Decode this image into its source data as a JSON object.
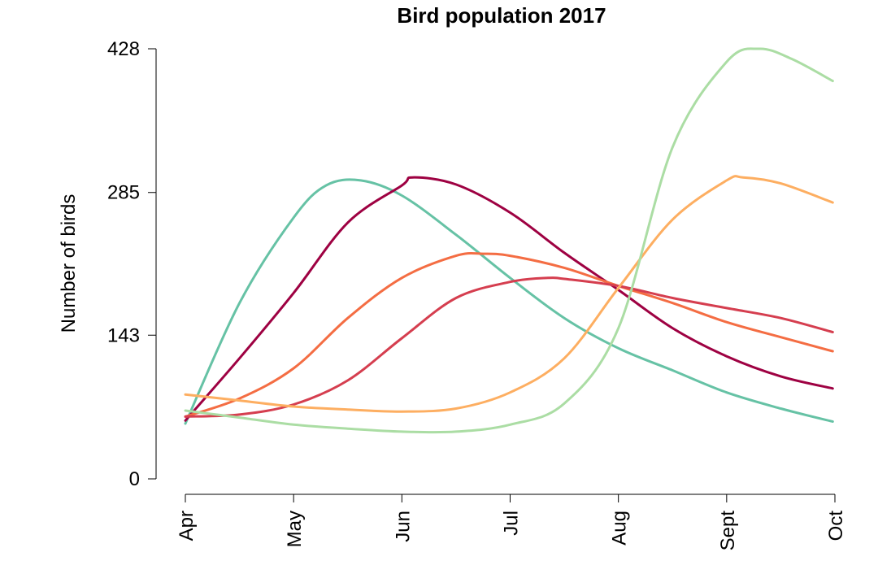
{
  "chart_data": {
    "type": "line",
    "title": "Bird population 2017",
    "ylabel": "Number of birds",
    "xlabel": "",
    "x_categories": [
      "Apr",
      "May",
      "Jun",
      "Jul",
      "Aug",
      "Sept",
      "Oct"
    ],
    "y_ticks": [
      0,
      143,
      285,
      428
    ],
    "y_tick_labels": [
      "0",
      "143",
      "285",
      "428"
    ],
    "ylim": [
      0,
      428
    ],
    "xlim": [
      0,
      6
    ],
    "grid": false,
    "legend": "none",
    "series": [
      {
        "color": "#66c2a5",
        "points": [
          [
            0,
            55
          ],
          [
            0.5,
            175
          ],
          [
            1,
            260
          ],
          [
            1.3,
            292
          ],
          [
            1.62,
            297
          ],
          [
            2,
            282
          ],
          [
            2.5,
            243
          ],
          [
            3,
            200
          ],
          [
            3.5,
            160
          ],
          [
            4,
            130
          ],
          [
            4.5,
            108
          ],
          [
            5,
            86
          ],
          [
            5.5,
            70
          ],
          [
            5.98,
            57
          ]
        ]
      },
      {
        "color": "#9e0142",
        "points": [
          [
            0,
            58
          ],
          [
            0.5,
            120
          ],
          [
            1,
            185
          ],
          [
            1.5,
            255
          ],
          [
            2,
            292
          ],
          [
            2.1,
            300
          ],
          [
            2.5,
            293
          ],
          [
            3,
            265
          ],
          [
            3.5,
            225
          ],
          [
            4,
            188
          ],
          [
            4.5,
            150
          ],
          [
            5,
            122
          ],
          [
            5.5,
            102
          ],
          [
            5.98,
            90
          ]
        ]
      },
      {
        "color": "#f46d43",
        "points": [
          [
            0,
            62
          ],
          [
            0.5,
            80
          ],
          [
            1,
            110
          ],
          [
            1.5,
            160
          ],
          [
            2,
            200
          ],
          [
            2.5,
            222
          ],
          [
            2.75,
            224
          ],
          [
            3,
            222
          ],
          [
            3.5,
            210
          ],
          [
            4,
            192
          ],
          [
            4.5,
            175
          ],
          [
            5,
            156
          ],
          [
            5.5,
            141
          ],
          [
            5.98,
            127
          ]
        ]
      },
      {
        "color": "#d53e4f",
        "points": [
          [
            0,
            62
          ],
          [
            0.5,
            64
          ],
          [
            1,
            74
          ],
          [
            1.5,
            98
          ],
          [
            2,
            140
          ],
          [
            2.5,
            180
          ],
          [
            3,
            196
          ],
          [
            3.35,
            200
          ],
          [
            3.5,
            199
          ],
          [
            4,
            192
          ],
          [
            4.5,
            180
          ],
          [
            5,
            170
          ],
          [
            5.5,
            160
          ],
          [
            5.98,
            146
          ]
        ]
      },
      {
        "color": "#fdae61",
        "points": [
          [
            0,
            84
          ],
          [
            0.5,
            78
          ],
          [
            1,
            72
          ],
          [
            1.5,
            69
          ],
          [
            2,
            67
          ],
          [
            2.5,
            70
          ],
          [
            3,
            86
          ],
          [
            3.5,
            120
          ],
          [
            4,
            190
          ],
          [
            4.5,
            258
          ],
          [
            5,
            297
          ],
          [
            5.15,
            300
          ],
          [
            5.5,
            294
          ],
          [
            5.98,
            275
          ]
        ]
      },
      {
        "color": "#abdda4",
        "points": [
          [
            0,
            68
          ],
          [
            0.5,
            61
          ],
          [
            1,
            54
          ],
          [
            1.5,
            50
          ],
          [
            2,
            47
          ],
          [
            2.5,
            47
          ],
          [
            3,
            54
          ],
          [
            3.5,
            75
          ],
          [
            4,
            150
          ],
          [
            4.5,
            330
          ],
          [
            5,
            415
          ],
          [
            5.3,
            428
          ],
          [
            5.6,
            418
          ],
          [
            5.98,
            396
          ]
        ]
      }
    ]
  }
}
